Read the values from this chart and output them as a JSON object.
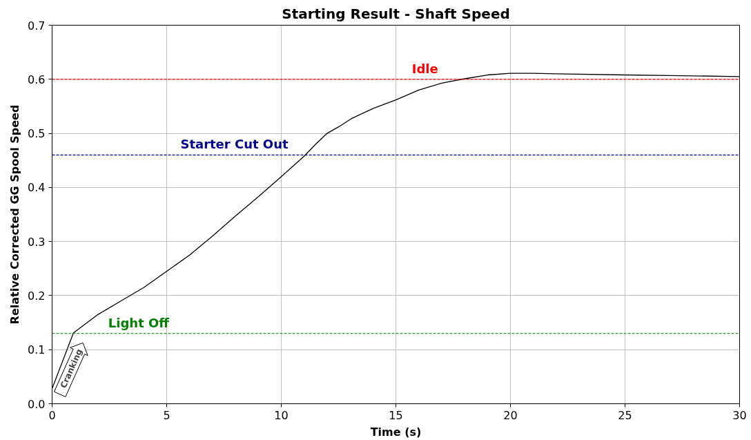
{
  "chart_data": {
    "type": "line",
    "title": "Starting Result - Shaft Speed",
    "xlabel": "Time (s)",
    "ylabel": "Relative Corrected GG Spool Speed",
    "x": [
      0,
      0.93,
      2,
      3,
      4,
      5,
      6,
      7,
      8,
      9,
      10,
      11,
      11.5,
      12,
      12.5,
      13.05,
      14,
      15,
      16,
      17,
      18,
      19,
      20,
      21,
      22,
      25,
      27,
      30
    ],
    "series": [
      {
        "color": "#000000",
        "values": [
          0.028,
          0.131,
          0.165,
          0.19,
          0.215,
          0.245,
          0.275,
          0.31,
          0.347,
          0.383,
          0.42,
          0.458,
          0.48,
          0.5,
          0.512,
          0.527,
          0.546,
          0.562,
          0.58,
          0.593,
          0.601,
          0.608,
          0.611,
          0.611,
          0.61,
          0.608,
          0.607,
          0.605
        ]
      }
    ],
    "xlim": [
      0,
      30
    ],
    "ylim": [
      0,
      0.7
    ],
    "xticks": [
      0,
      5,
      10,
      15,
      20,
      25,
      30
    ],
    "yticks": [
      {
        "value": 0,
        "label": "0.0"
      },
      {
        "value": 0.1,
        "label": "0.1"
      },
      {
        "value": 0.2,
        "label": "0.2"
      },
      {
        "value": 0.3,
        "label": "0.3"
      },
      {
        "value": 0.4,
        "label": "0.4"
      },
      {
        "value": 0.5,
        "label": "0.5"
      },
      {
        "value": 0.6,
        "label": "0.6"
      },
      {
        "value": 0.7,
        "label": "0.7"
      }
    ],
    "grid": true,
    "line_style": "solid",
    "marker": "none",
    "ref_lines": [
      {
        "axis": "y",
        "value": 0.6,
        "color": "#ff0000",
        "line_style": "dashed"
      },
      {
        "axis": "y",
        "value": 0.46,
        "color": "#00008b",
        "line_style": "dashed"
      },
      {
        "axis": "y",
        "value": 0.13,
        "color": "#008000",
        "line_style": "dashed"
      }
    ],
    "annotations": [
      {
        "text": "Idle",
        "x": 15.7,
        "y": 0.6
      },
      {
        "text": "Starter Cut Out",
        "x": 5.6,
        "y": 0.46
      },
      {
        "text": "Light Off",
        "x": 2.45,
        "y": 0.13
      },
      "Cranking"
    ]
  }
}
